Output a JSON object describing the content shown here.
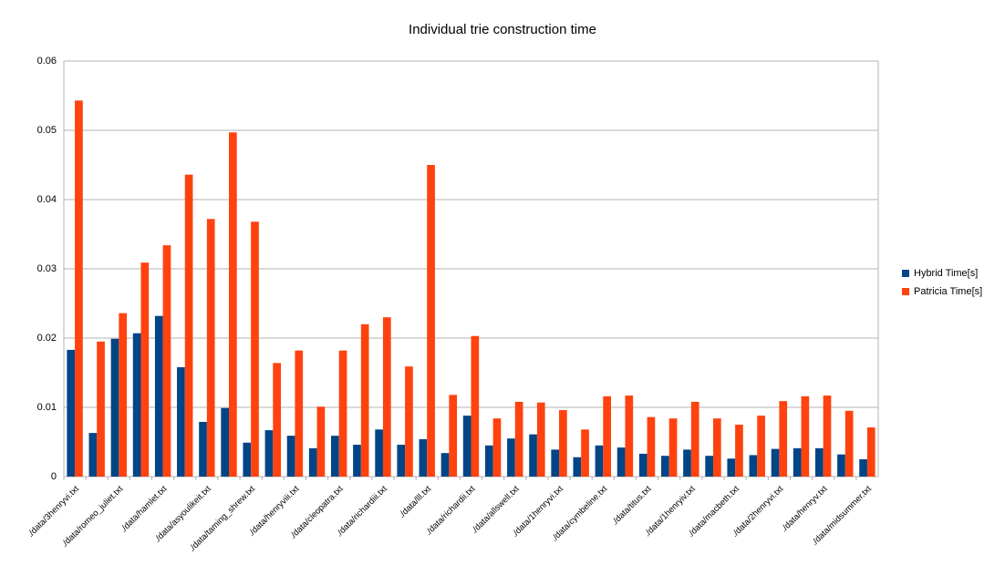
{
  "chart_data": {
    "type": "bar",
    "title": "Individual trie construction time",
    "categories": [
      "./data/3henryvi.txt",
      null,
      "./data/romeo_juliet.txt",
      null,
      "./data/hamlet.txt",
      null,
      "./data/asyoulikeit.txt",
      null,
      "./data/taming_shrew.txt",
      null,
      "./data/henryviii.txt",
      null,
      "./data/cleopatra.txt",
      null,
      "./data/richardiii.txt",
      null,
      "./data/lll.txt",
      null,
      "./data/richardii.txt",
      null,
      "./data/allswell.txt",
      null,
      "./data/1henryvi.txt",
      null,
      "./data/cymbeline.txt",
      null,
      "./data/titus.txt",
      null,
      "./data/1henryiv.txt",
      null,
      "./data/macbeth.txt",
      null,
      "./data/2henryvi.txt",
      null,
      "./data/henryv.txt",
      null,
      "./data/midsummer.txt"
    ],
    "series": [
      {
        "name": "Hybrid Time[s]",
        "color": "#004586",
        "values": [
          0.0183,
          0.0063,
          0.0199,
          0.0207,
          0.0232,
          0.0158,
          0.0079,
          0.0099,
          0.0049,
          0.0067,
          0.0059,
          0.0041,
          0.0059,
          0.0046,
          0.0068,
          0.0046,
          0.0054,
          0.0034,
          0.0088,
          0.0045,
          0.0055,
          0.0061,
          0.0039,
          0.0028,
          0.0045,
          0.0042,
          0.0033,
          0.003,
          0.0039,
          0.003,
          0.0026,
          0.0031,
          0.004,
          0.0041,
          0.0041,
          0.0032,
          0.0025
        ]
      },
      {
        "name": "Patricia Time[s]",
        "color": "#ff420e",
        "values": [
          0.0543,
          0.0195,
          0.0236,
          0.0309,
          0.0334,
          0.0436,
          0.0372,
          0.0497,
          0.0368,
          0.0164,
          0.0182,
          0.0101,
          0.0182,
          0.022,
          0.023,
          0.0159,
          0.045,
          0.0118,
          0.0203,
          0.0084,
          0.0108,
          0.0107,
          0.0096,
          0.0068,
          0.0116,
          0.0117,
          0.0086,
          0.0084,
          0.0108,
          0.0084,
          0.0075,
          0.0088,
          0.0109,
          0.0116,
          0.0117,
          0.0095,
          0.0071
        ]
      }
    ],
    "ylim": [
      0,
      0.06
    ],
    "yticks": [
      0,
      0.01,
      0.02,
      0.03,
      0.04,
      0.05,
      0.06
    ],
    "grid": true,
    "legend": "right"
  }
}
